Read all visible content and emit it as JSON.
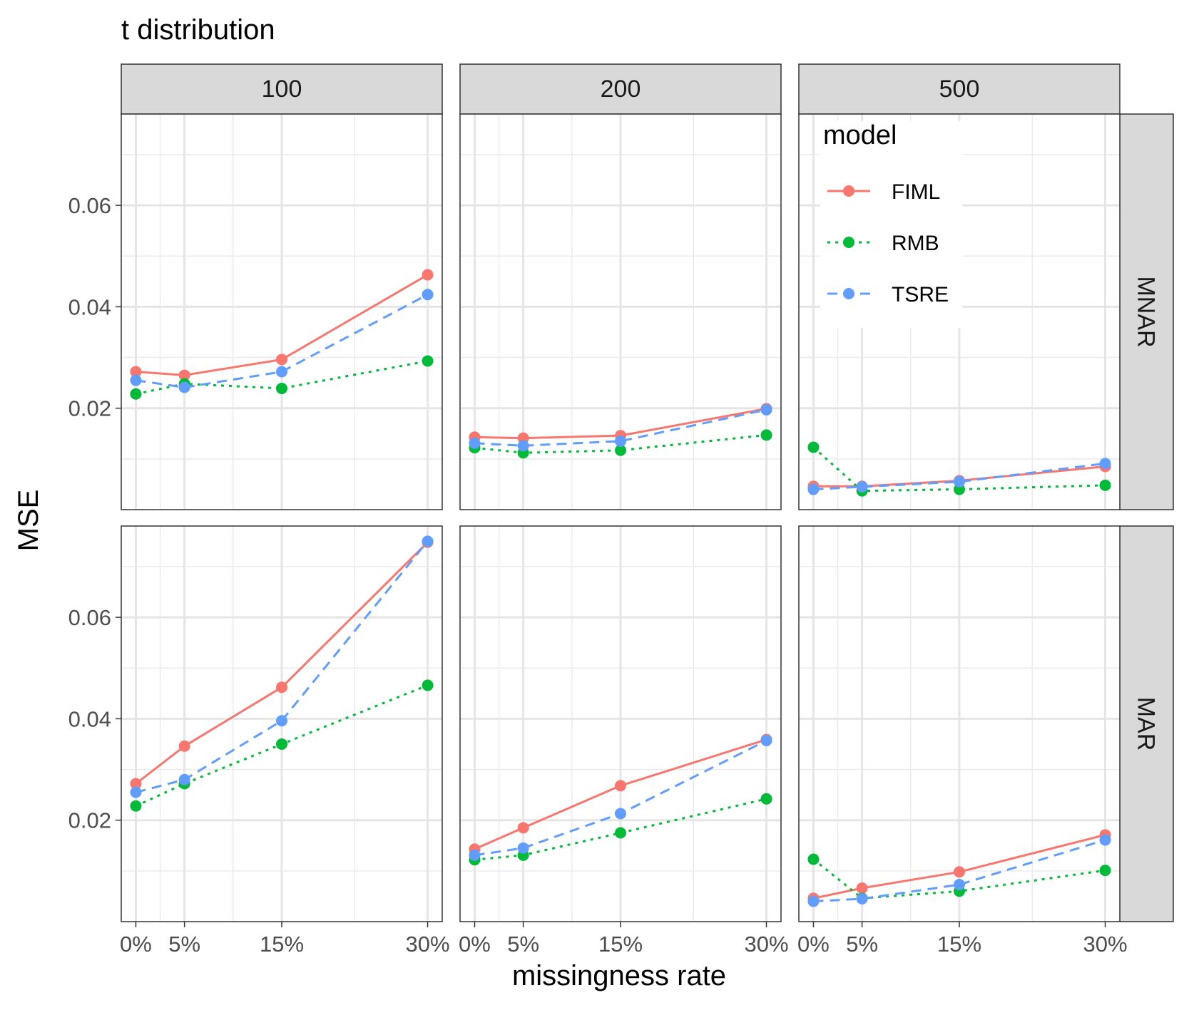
{
  "chart_data": {
    "type": "line",
    "title": "t distribution",
    "xlabel": "missingness rate",
    "ylabel": "MSE",
    "x": [
      0,
      5,
      15,
      30
    ],
    "x_tick_labels": [
      "0%",
      "5%",
      "15%",
      "30%"
    ],
    "xlim": [
      -1.5,
      31.5
    ],
    "ylim": [
      0,
      0.078
    ],
    "y_ticks": [
      0.02,
      0.04,
      0.06
    ],
    "y_tick_labels": [
      "0.02",
      "0.04",
      "0.06"
    ],
    "column_facets": [
      "100",
      "200",
      "500"
    ],
    "row_facets": [
      "MNAR",
      "MAR"
    ],
    "grid": true,
    "legend": {
      "title": "model",
      "placement": "inside top-right panel",
      "entries": [
        {
          "name": "FIML",
          "color": "#F8766D",
          "dash": "solid"
        },
        {
          "name": "RMB",
          "color": "#00BA38",
          "dash": "dotted"
        },
        {
          "name": "TSRE",
          "color": "#619CFF",
          "dash": "dashed"
        }
      ]
    },
    "panels": [
      {
        "row": "MNAR",
        "col": "100",
        "series": [
          {
            "name": "FIML",
            "values": [
              0.0272,
              0.0265,
              0.0296,
              0.0463
            ]
          },
          {
            "name": "RMB",
            "values": [
              0.0228,
              0.0248,
              0.0239,
              0.0293
            ]
          },
          {
            "name": "TSRE",
            "values": [
              0.0255,
              0.0241,
              0.0272,
              0.0424
            ]
          }
        ]
      },
      {
        "row": "MNAR",
        "col": "200",
        "series": [
          {
            "name": "FIML",
            "values": [
              0.0143,
              0.0141,
              0.0146,
              0.0199
            ]
          },
          {
            "name": "RMB",
            "values": [
              0.0122,
              0.0112,
              0.0117,
              0.0147
            ]
          },
          {
            "name": "TSRE",
            "values": [
              0.0131,
              0.0126,
              0.0135,
              0.0197
            ]
          }
        ]
      },
      {
        "row": "MNAR",
        "col": "500",
        "series": [
          {
            "name": "FIML",
            "values": [
              0.0046,
              0.0046,
              0.0057,
              0.0085
            ]
          },
          {
            "name": "RMB",
            "values": [
              0.0123,
              0.0037,
              0.004,
              0.0048
            ]
          },
          {
            "name": "TSRE",
            "values": [
              0.004,
              0.0045,
              0.0055,
              0.0091
            ]
          }
        ]
      },
      {
        "row": "MAR",
        "col": "100",
        "series": [
          {
            "name": "FIML",
            "values": [
              0.0272,
              0.0346,
              0.0462,
              0.0748
            ]
          },
          {
            "name": "RMB",
            "values": [
              0.0228,
              0.0272,
              0.035,
              0.0466
            ]
          },
          {
            "name": "TSRE",
            "values": [
              0.0255,
              0.028,
              0.0396,
              0.075
            ]
          }
        ]
      },
      {
        "row": "MAR",
        "col": "200",
        "series": [
          {
            "name": "FIML",
            "values": [
              0.0143,
              0.0185,
              0.0268,
              0.0359
            ]
          },
          {
            "name": "RMB",
            "values": [
              0.0122,
              0.0131,
              0.0175,
              0.0242
            ]
          },
          {
            "name": "TSRE",
            "values": [
              0.0131,
              0.0145,
              0.0213,
              0.0357
            ]
          }
        ]
      },
      {
        "row": "MAR",
        "col": "500",
        "series": [
          {
            "name": "FIML",
            "values": [
              0.0046,
              0.0066,
              0.0098,
              0.0171
            ]
          },
          {
            "name": "RMB",
            "values": [
              0.0123,
              0.0046,
              0.006,
              0.0101
            ]
          },
          {
            "name": "TSRE",
            "values": [
              0.004,
              0.0045,
              0.0073,
              0.0161
            ]
          }
        ]
      }
    ]
  }
}
